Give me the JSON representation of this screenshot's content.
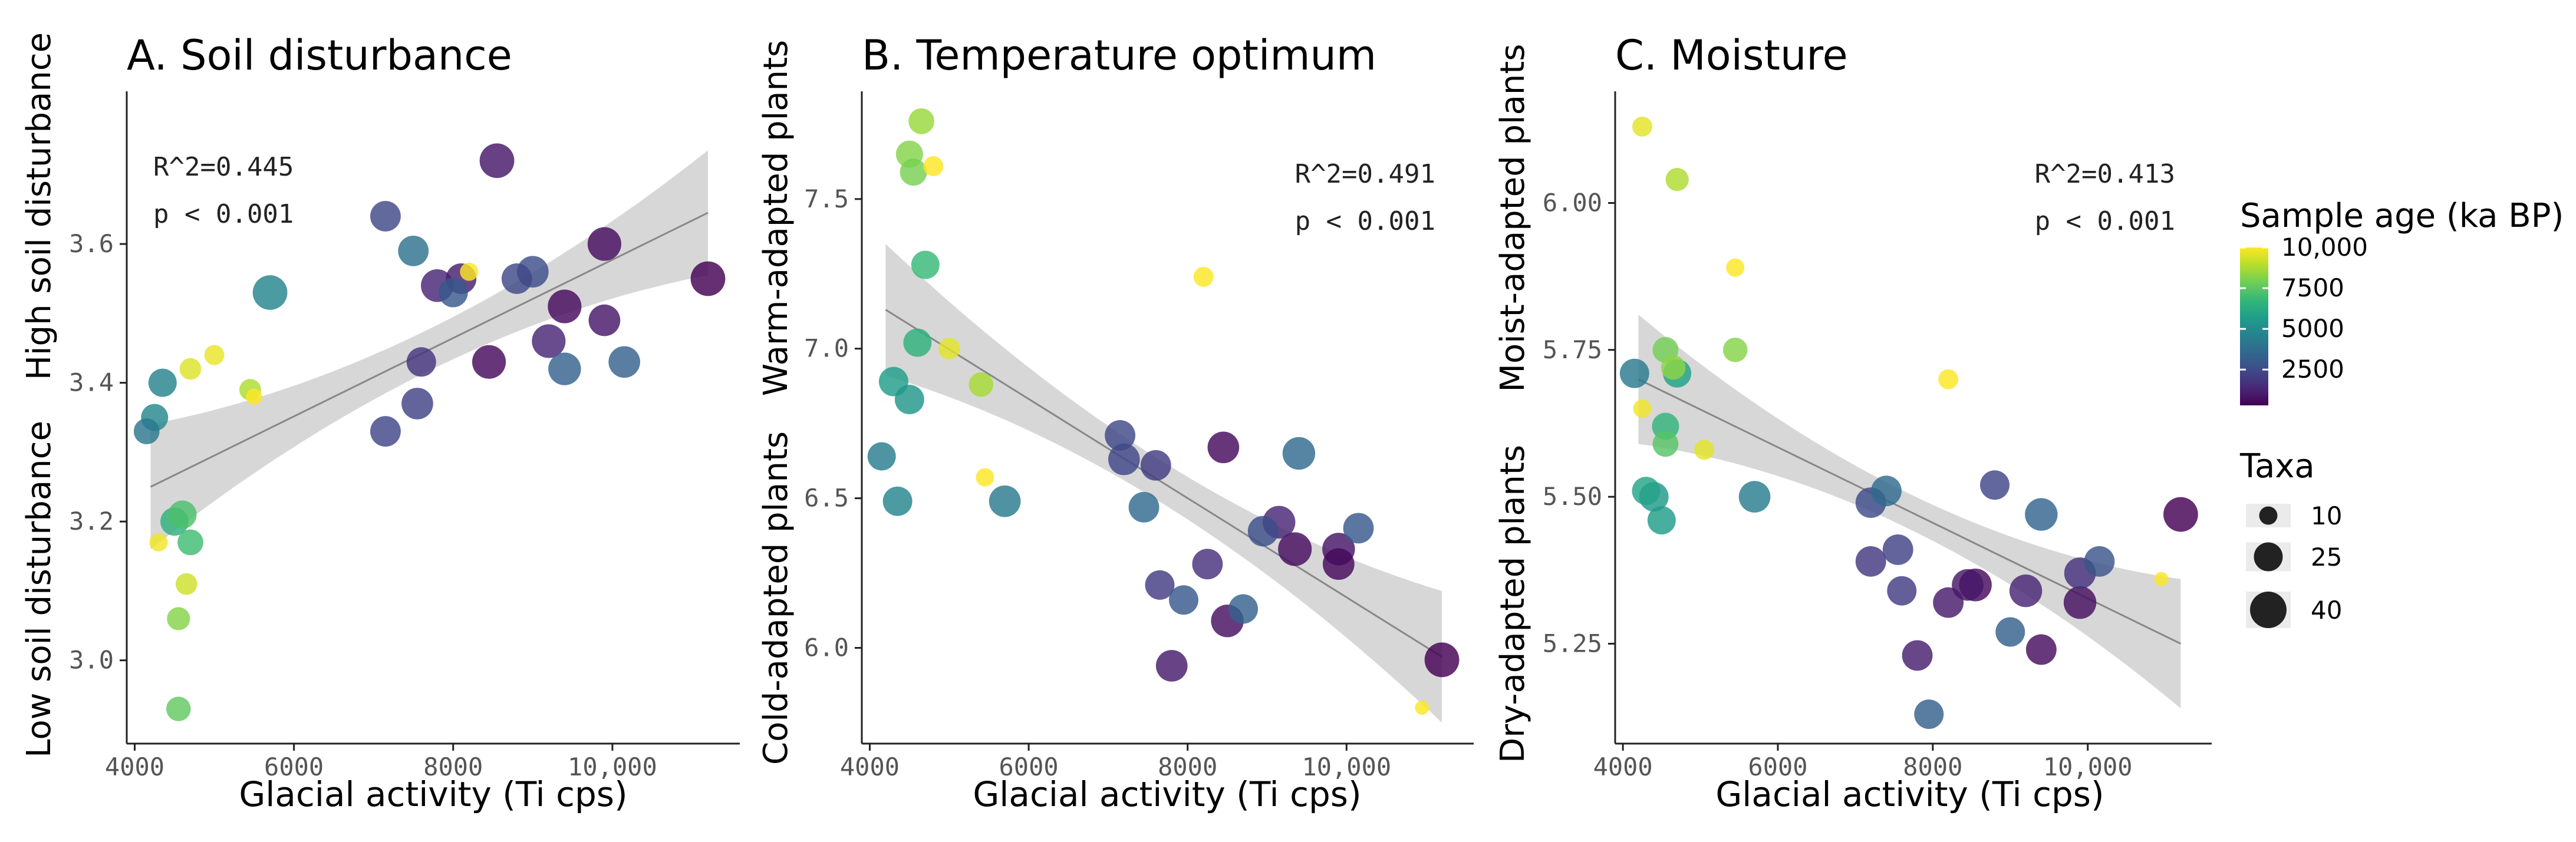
{
  "chart_data": [
    {
      "type": "scatter",
      "panel": "A",
      "title": "A. Soil disturbance",
      "xlabel": "Glacial activity (Ti cps)",
      "ylabel_high": "High soil disturbance",
      "ylabel_low": "Low soil disturbance",
      "xlim": [
        3900,
        11600
      ],
      "ylim": [
        2.88,
        3.82
      ],
      "xticks": [
        4000,
        6000,
        8000,
        10000
      ],
      "xtick_labels": [
        "4000",
        "6000",
        "8000",
        "10,000"
      ],
      "yticks": [
        3.0,
        3.2,
        3.4,
        3.6
      ],
      "ytick_labels": [
        "3.0",
        "3.2",
        "3.4",
        "3.6"
      ],
      "annotation": [
        "R^2=0.445",
        "p < 0.001"
      ],
      "annotation_position": "top-left",
      "trend": {
        "x": [
          4200,
          11200
        ],
        "y": [
          3.25,
          3.645
        ],
        "ci_half_width_ends": 0.09,
        "ci_half_width_mid": 0.03
      },
      "points": [
        {
          "x": 4150,
          "y": 3.33,
          "age": 4200,
          "taxa": 20
        },
        {
          "x": 4250,
          "y": 3.35,
          "age": 4800,
          "taxa": 22
        },
        {
          "x": 4350,
          "y": 3.4,
          "age": 4600,
          "taxa": 24
        },
        {
          "x": 4300,
          "y": 3.17,
          "age": 9800,
          "taxa": 10
        },
        {
          "x": 4500,
          "y": 3.2,
          "age": 6500,
          "taxa": 24
        },
        {
          "x": 4600,
          "y": 3.21,
          "age": 7200,
          "taxa": 24
        },
        {
          "x": 4700,
          "y": 3.17,
          "age": 7000,
          "taxa": 20
        },
        {
          "x": 4650,
          "y": 3.11,
          "age": 9300,
          "taxa": 14
        },
        {
          "x": 4550,
          "y": 3.06,
          "age": 8200,
          "taxa": 16
        },
        {
          "x": 4550,
          "y": 2.93,
          "age": 7600,
          "taxa": 18
        },
        {
          "x": 4700,
          "y": 3.42,
          "age": 9500,
          "taxa": 14
        },
        {
          "x": 5000,
          "y": 3.44,
          "age": 9700,
          "taxa": 12
        },
        {
          "x": 5450,
          "y": 3.39,
          "age": 8800,
          "taxa": 14
        },
        {
          "x": 5500,
          "y": 3.38,
          "age": 10000,
          "taxa": 8
        },
        {
          "x": 5700,
          "y": 3.53,
          "age": 4700,
          "taxa": 36
        },
        {
          "x": 7150,
          "y": 3.64,
          "age": 2400,
          "taxa": 28
        },
        {
          "x": 7500,
          "y": 3.59,
          "age": 3900,
          "taxa": 28
        },
        {
          "x": 7150,
          "y": 3.33,
          "age": 2300,
          "taxa": 28
        },
        {
          "x": 7550,
          "y": 3.37,
          "age": 2200,
          "taxa": 30
        },
        {
          "x": 7600,
          "y": 3.43,
          "age": 1800,
          "taxa": 26
        },
        {
          "x": 7800,
          "y": 3.54,
          "age": 1300,
          "taxa": 32
        },
        {
          "x": 8000,
          "y": 3.53,
          "age": 3000,
          "taxa": 26
        },
        {
          "x": 8100,
          "y": 3.55,
          "age": 1100,
          "taxa": 28
        },
        {
          "x": 8200,
          "y": 3.56,
          "age": 10000,
          "taxa": 10
        },
        {
          "x": 8450,
          "y": 3.43,
          "age": 500,
          "taxa": 34
        },
        {
          "x": 8550,
          "y": 3.72,
          "age": 900,
          "taxa": 36
        },
        {
          "x": 8800,
          "y": 3.55,
          "age": 2400,
          "taxa": 28
        },
        {
          "x": 9000,
          "y": 3.56,
          "age": 2600,
          "taxa": 30
        },
        {
          "x": 9200,
          "y": 3.46,
          "age": 1300,
          "taxa": 34
        },
        {
          "x": 9400,
          "y": 3.42,
          "age": 3300,
          "taxa": 32
        },
        {
          "x": 9400,
          "y": 3.51,
          "age": 500,
          "taxa": 34
        },
        {
          "x": 9900,
          "y": 3.49,
          "age": 900,
          "taxa": 30
        },
        {
          "x": 9900,
          "y": 3.6,
          "age": 600,
          "taxa": 34
        },
        {
          "x": 10150,
          "y": 3.43,
          "age": 3300,
          "taxa": 30
        },
        {
          "x": 11200,
          "y": 3.55,
          "age": 300,
          "taxa": 36
        }
      ]
    },
    {
      "type": "scatter",
      "panel": "B",
      "title": "B. Temperature optimum",
      "xlabel": "Glacial activity (Ti cps)",
      "ylabel_high": "Warm-adapted plants",
      "ylabel_low": "Cold-adapted plants",
      "xlim": [
        3900,
        11600
      ],
      "ylim": [
        5.68,
        7.86
      ],
      "xticks": [
        4000,
        6000,
        8000,
        10000
      ],
      "xtick_labels": [
        "4000",
        "6000",
        "8000",
        "10,000"
      ],
      "yticks": [
        6.0,
        6.5,
        7.0,
        7.5
      ],
      "ytick_labels": [
        "6.0",
        "6.5",
        "7.0",
        "7.5"
      ],
      "annotation": [
        "R^2=0.491",
        "p < 0.001"
      ],
      "annotation_position": "top-right",
      "trend": {
        "x": [
          4200,
          11200
        ],
        "y": [
          7.13,
          5.97
        ],
        "ci_half_width_ends": 0.22,
        "ci_half_width_mid": 0.07
      },
      "points": [
        {
          "x": 4650,
          "y": 7.76,
          "age": 8500,
          "taxa": 20
        },
        {
          "x": 4500,
          "y": 7.65,
          "age": 8200,
          "taxa": 22
        },
        {
          "x": 4550,
          "y": 7.59,
          "age": 8000,
          "taxa": 22
        },
        {
          "x": 4800,
          "y": 7.61,
          "age": 10000,
          "taxa": 12
        },
        {
          "x": 4700,
          "y": 7.28,
          "age": 6800,
          "taxa": 24
        },
        {
          "x": 4600,
          "y": 7.02,
          "age": 6500,
          "taxa": 24
        },
        {
          "x": 5000,
          "y": 7.0,
          "age": 9600,
          "taxa": 14
        },
        {
          "x": 5400,
          "y": 6.88,
          "age": 8700,
          "taxa": 18
        },
        {
          "x": 4300,
          "y": 6.89,
          "age": 5600,
          "taxa": 26
        },
        {
          "x": 4500,
          "y": 6.83,
          "age": 5400,
          "taxa": 26
        },
        {
          "x": 4150,
          "y": 6.64,
          "age": 4400,
          "taxa": 24
        },
        {
          "x": 4350,
          "y": 6.49,
          "age": 4700,
          "taxa": 26
        },
        {
          "x": 5450,
          "y": 6.57,
          "age": 10000,
          "taxa": 10
        },
        {
          "x": 5700,
          "y": 6.49,
          "age": 4300,
          "taxa": 30
        },
        {
          "x": 8200,
          "y": 7.24,
          "age": 10000,
          "taxa": 12
        },
        {
          "x": 7150,
          "y": 6.71,
          "age": 2400,
          "taxa": 28
        },
        {
          "x": 7200,
          "y": 6.63,
          "age": 2300,
          "taxa": 30
        },
        {
          "x": 7450,
          "y": 6.47,
          "age": 3600,
          "taxa": 28
        },
        {
          "x": 7600,
          "y": 6.61,
          "age": 2000,
          "taxa": 28
        },
        {
          "x": 7650,
          "y": 6.21,
          "age": 2000,
          "taxa": 26
        },
        {
          "x": 7950,
          "y": 6.16,
          "age": 3000,
          "taxa": 26
        },
        {
          "x": 8250,
          "y": 6.28,
          "age": 1600,
          "taxa": 28
        },
        {
          "x": 8450,
          "y": 6.67,
          "age": 500,
          "taxa": 30
        },
        {
          "x": 7800,
          "y": 5.94,
          "age": 1000,
          "taxa": 30
        },
        {
          "x": 8500,
          "y": 6.09,
          "age": 700,
          "taxa": 32
        },
        {
          "x": 8700,
          "y": 6.13,
          "age": 3300,
          "taxa": 26
        },
        {
          "x": 8950,
          "y": 6.39,
          "age": 2600,
          "taxa": 28
        },
        {
          "x": 9150,
          "y": 6.42,
          "age": 1300,
          "taxa": 32
        },
        {
          "x": 9400,
          "y": 6.65,
          "age": 3600,
          "taxa": 32
        },
        {
          "x": 9350,
          "y": 6.33,
          "age": 600,
          "taxa": 34
        },
        {
          "x": 9900,
          "y": 6.33,
          "age": 800,
          "taxa": 32
        },
        {
          "x": 9900,
          "y": 6.28,
          "age": 500,
          "taxa": 30
        },
        {
          "x": 10150,
          "y": 6.4,
          "age": 3000,
          "taxa": 28
        },
        {
          "x": 11200,
          "y": 5.96,
          "age": 300,
          "taxa": 36
        },
        {
          "x": 10950,
          "y": 5.8,
          "age": 10000,
          "taxa": 6
        }
      ]
    },
    {
      "type": "scatter",
      "panel": "C",
      "title": "C. Moisture",
      "xlabel": "Glacial activity (Ti cps)",
      "ylabel_high": "Moist-adapted plants",
      "ylabel_low": "Dry-adapted plants",
      "xlim": [
        3900,
        11600
      ],
      "ylim": [
        5.08,
        6.19
      ],
      "xticks": [
        4000,
        6000,
        8000,
        10000
      ],
      "xtick_labels": [
        "4000",
        "6000",
        "8000",
        "10,000"
      ],
      "yticks": [
        5.25,
        5.5,
        5.75,
        6.0
      ],
      "ytick_labels": [
        "5.25",
        "5.50",
        "5.75",
        "6.00"
      ],
      "annotation": [
        "R^2=0.413",
        "p < 0.001"
      ],
      "annotation_position": "top-right",
      "trend": {
        "x": [
          4200,
          11200
        ],
        "y": [
          5.7,
          5.25
        ],
        "ci_half_width_ends": 0.11,
        "ci_half_width_mid": 0.03
      },
      "points": [
        {
          "x": 4250,
          "y": 6.13,
          "age": 9600,
          "taxa": 12
        },
        {
          "x": 4700,
          "y": 6.04,
          "age": 8800,
          "taxa": 16
        },
        {
          "x": 5450,
          "y": 5.89,
          "age": 10000,
          "taxa": 10
        },
        {
          "x": 5450,
          "y": 5.75,
          "age": 8200,
          "taxa": 18
        },
        {
          "x": 8200,
          "y": 5.7,
          "age": 10000,
          "taxa": 12
        },
        {
          "x": 4150,
          "y": 5.71,
          "age": 4300,
          "taxa": 26
        },
        {
          "x": 4550,
          "y": 5.75,
          "age": 7900,
          "taxa": 20
        },
        {
          "x": 4650,
          "y": 5.72,
          "age": 8300,
          "taxa": 18
        },
        {
          "x": 4700,
          "y": 5.71,
          "age": 5800,
          "taxa": 24
        },
        {
          "x": 4250,
          "y": 5.65,
          "age": 9800,
          "taxa": 10
        },
        {
          "x": 4550,
          "y": 5.62,
          "age": 6600,
          "taxa": 22
        },
        {
          "x": 4550,
          "y": 5.59,
          "age": 7400,
          "taxa": 20
        },
        {
          "x": 5050,
          "y": 5.58,
          "age": 9600,
          "taxa": 12
        },
        {
          "x": 4300,
          "y": 5.51,
          "age": 5900,
          "taxa": 24
        },
        {
          "x": 4400,
          "y": 5.5,
          "age": 5500,
          "taxa": 26
        },
        {
          "x": 4500,
          "y": 5.46,
          "age": 5600,
          "taxa": 24
        },
        {
          "x": 5700,
          "y": 5.5,
          "age": 4400,
          "taxa": 30
        },
        {
          "x": 7200,
          "y": 5.49,
          "age": 2500,
          "taxa": 28
        },
        {
          "x": 7400,
          "y": 5.51,
          "age": 3600,
          "taxa": 28
        },
        {
          "x": 7200,
          "y": 5.39,
          "age": 1900,
          "taxa": 28
        },
        {
          "x": 7550,
          "y": 5.41,
          "age": 2200,
          "taxa": 28
        },
        {
          "x": 7600,
          "y": 5.34,
          "age": 2000,
          "taxa": 26
        },
        {
          "x": 7800,
          "y": 5.23,
          "age": 1100,
          "taxa": 28
        },
        {
          "x": 7950,
          "y": 5.13,
          "age": 3200,
          "taxa": 26
        },
        {
          "x": 8200,
          "y": 5.32,
          "age": 1000,
          "taxa": 28
        },
        {
          "x": 8450,
          "y": 5.35,
          "age": 900,
          "taxa": 30
        },
        {
          "x": 8550,
          "y": 5.35,
          "age": 500,
          "taxa": 32
        },
        {
          "x": 8800,
          "y": 5.52,
          "age": 2300,
          "taxa": 26
        },
        {
          "x": 9000,
          "y": 5.27,
          "age": 3200,
          "taxa": 26
        },
        {
          "x": 9200,
          "y": 5.34,
          "age": 1300,
          "taxa": 32
        },
        {
          "x": 9400,
          "y": 5.47,
          "age": 3400,
          "taxa": 32
        },
        {
          "x": 9400,
          "y": 5.24,
          "age": 600,
          "taxa": 28
        },
        {
          "x": 9900,
          "y": 5.37,
          "age": 1600,
          "taxa": 30
        },
        {
          "x": 9900,
          "y": 5.32,
          "age": 700,
          "taxa": 32
        },
        {
          "x": 10150,
          "y": 5.39,
          "age": 2800,
          "taxa": 28
        },
        {
          "x": 10950,
          "y": 5.36,
          "age": 10000,
          "taxa": 6
        },
        {
          "x": 11200,
          "y": 5.47,
          "age": 300,
          "taxa": 36
        }
      ]
    }
  ],
  "legend": {
    "color": {
      "title": "Sample age (ka BP)",
      "range": [
        300,
        10000
      ],
      "labels": [
        "10,000",
        "7500",
        "5000",
        "2500"
      ],
      "values": [
        10000,
        7500,
        5000,
        2500
      ],
      "palette": [
        "#440154",
        "#482878",
        "#3e4a89",
        "#31688e",
        "#26828e",
        "#1f9e89",
        "#35b779",
        "#6ece58",
        "#b5de2b",
        "#fde725"
      ]
    },
    "size": {
      "title": "Taxa",
      "labels": [
        "10",
        "25",
        "40"
      ],
      "values": [
        10,
        25,
        40
      ],
      "color": "#222222"
    }
  },
  "colors": {
    "trend_line": "#888888",
    "ci_band": "#d3d3d3"
  }
}
